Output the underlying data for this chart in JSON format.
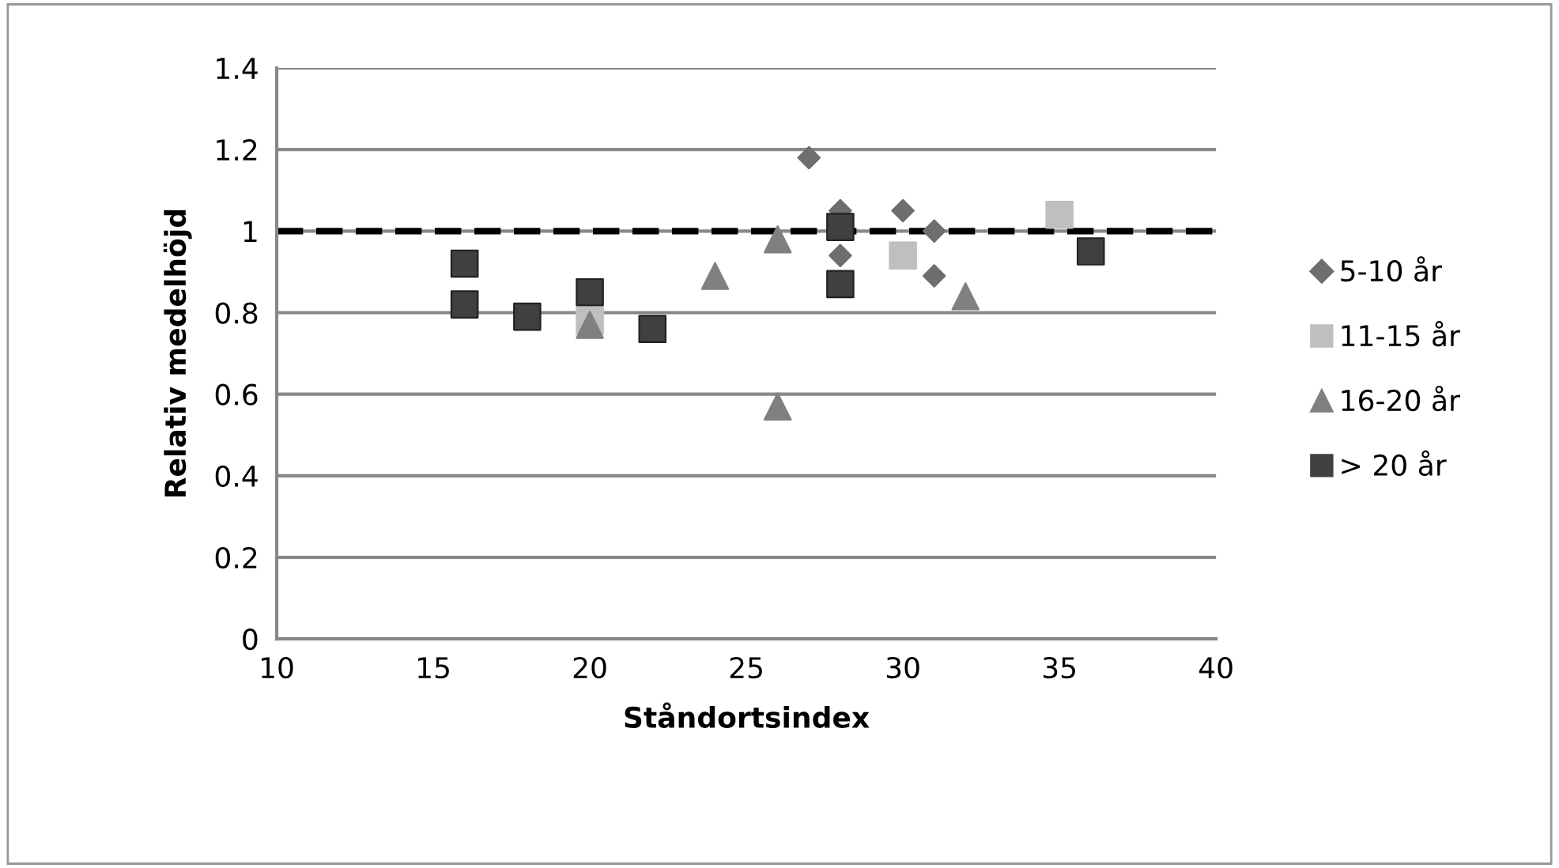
{
  "chart_data": {
    "type": "scatter",
    "xlabel": "Ståndortsindex",
    "ylabel": "Relativ medelhöjd",
    "xlim": [
      10,
      40
    ],
    "xticks": [
      10,
      15,
      20,
      25,
      30,
      35,
      40
    ],
    "ylim": [
      0,
      1.4
    ],
    "yticks": [
      0,
      0.2,
      0.4,
      0.6,
      0.8,
      1,
      1.2,
      1.4
    ],
    "grid": "y",
    "legend": "right",
    "ref_lines": [
      {
        "axis": "y",
        "value": 1,
        "color": "#000000",
        "line_style": "dashed"
      }
    ],
    "series": [
      {
        "name": "5-10 år",
        "color": "#6e6e6e",
        "marker": "diamond",
        "x": [
          27,
          28,
          28,
          30,
          31,
          31
        ],
        "values": [
          1.18,
          1.05,
          0.94,
          1.05,
          1.0,
          0.89
        ]
      },
      {
        "name": "11-15 år",
        "color": "#bfbfbf",
        "marker": "square",
        "x": [
          20,
          30,
          35
        ],
        "values": [
          0.78,
          0.94,
          1.04
        ]
      },
      {
        "name": "16-20 år",
        "color": "#808080",
        "marker": "triangle",
        "x": [
          20,
          24,
          26,
          26,
          32
        ],
        "values": [
          0.77,
          0.89,
          0.98,
          0.57,
          0.84
        ]
      },
      {
        "name": "> 20 år",
        "color": "#404040",
        "marker": "square",
        "x": [
          16,
          16,
          18,
          20,
          22,
          28,
          28,
          36
        ],
        "values": [
          0.92,
          0.82,
          0.79,
          0.85,
          0.76,
          1.01,
          0.87,
          0.95
        ]
      }
    ]
  }
}
